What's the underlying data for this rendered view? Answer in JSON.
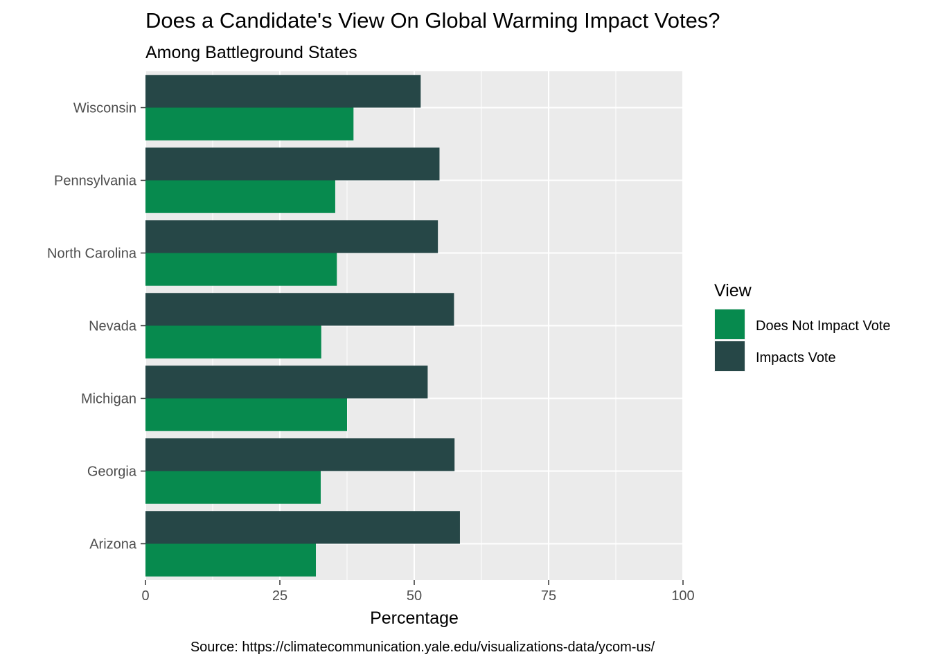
{
  "chart_data": {
    "type": "bar",
    "orientation": "horizontal",
    "title": "Does a Candidate's View On Global Warming Impact Votes?",
    "subtitle": "Among Battleground States",
    "xlabel": "Percentage",
    "ylabel": "",
    "caption": "Source: https://climatecommunication.yale.edu/visualizations-data/ycom-us/",
    "xlim": [
      0,
      100
    ],
    "x_ticks": [
      0,
      25,
      50,
      75,
      100
    ],
    "categories": [
      "Wisconsin",
      "Pennsylvania",
      "North Carolina",
      "Nevada",
      "Michigan",
      "Georgia",
      "Arizona"
    ],
    "series": [
      {
        "name": "Impacts Vote",
        "color": "#264747",
        "values": [
          51.2,
          54.7,
          54.4,
          57.4,
          52.5,
          57.5,
          58.5
        ]
      },
      {
        "name": "Does Not Impact Vote",
        "color": "#078a4e",
        "values": [
          38.7,
          35.3,
          35.6,
          32.7,
          37.5,
          32.6,
          31.7
        ]
      }
    ],
    "legend": {
      "title": "View",
      "position": "right",
      "entries": [
        "Does Not Impact Vote",
        "Impacts Vote"
      ]
    },
    "grid": true,
    "panel_background": "#ebebeb"
  }
}
